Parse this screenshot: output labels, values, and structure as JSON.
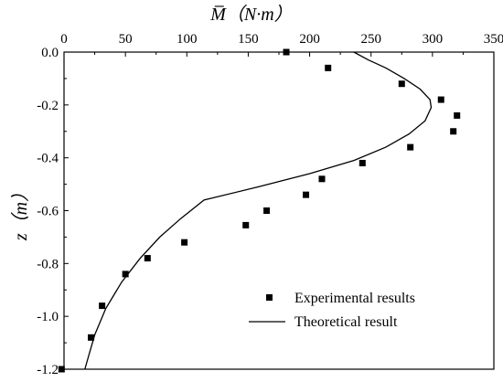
{
  "chart_data": {
    "type": "scatter",
    "title": "",
    "xlabel": "M̅（N·m）",
    "ylabel": "z（m）",
    "xlim": [
      0,
      350
    ],
    "ylim": [
      -1.2,
      0.0
    ],
    "x_ticks": [
      0,
      50,
      100,
      150,
      200,
      250,
      300,
      350
    ],
    "y_ticks": [
      0.0,
      -0.2,
      -0.4,
      -0.6,
      -0.8,
      -1.0,
      -1.2
    ],
    "y_tick_labels": [
      "0.0",
      "-0.2",
      "-0.4",
      "-0.6",
      "-0.8",
      "-1.0",
      "-1.2"
    ],
    "x_axis_position": "top",
    "grid": false,
    "legend_position": "bottom-right",
    "series": [
      {
        "name": "Experimental results",
        "type": "scatter",
        "marker": "square",
        "color": "#000000",
        "points": [
          {
            "x": 181,
            "y": 0.0
          },
          {
            "x": 215,
            "y": -0.06
          },
          {
            "x": 275,
            "y": -0.12
          },
          {
            "x": 307,
            "y": -0.18
          },
          {
            "x": 320,
            "y": -0.24
          },
          {
            "x": 317,
            "y": -0.3
          },
          {
            "x": 282,
            "y": -0.36
          },
          {
            "x": 243,
            "y": -0.42
          },
          {
            "x": 210,
            "y": -0.48
          },
          {
            "x": 197,
            "y": -0.54
          },
          {
            "x": 165,
            "y": -0.6
          },
          {
            "x": 148,
            "y": -0.655
          },
          {
            "x": 98,
            "y": -0.72
          },
          {
            "x": 68,
            "y": -0.78
          },
          {
            "x": 50,
            "y": -0.84
          },
          {
            "x": 31,
            "y": -0.96
          },
          {
            "x": 22,
            "y": -1.08
          },
          {
            "x": -2,
            "y": -1.2
          }
        ]
      },
      {
        "name": "Theoretical result",
        "type": "line",
        "color": "#000000",
        "points": [
          {
            "x": 236,
            "y": 0.0
          },
          {
            "x": 248,
            "y": -0.03
          },
          {
            "x": 262,
            "y": -0.06
          },
          {
            "x": 277,
            "y": -0.1
          },
          {
            "x": 290,
            "y": -0.14
          },
          {
            "x": 298,
            "y": -0.18
          },
          {
            "x": 299,
            "y": -0.21
          },
          {
            "x": 294,
            "y": -0.26
          },
          {
            "x": 281,
            "y": -0.31
          },
          {
            "x": 262,
            "y": -0.36
          },
          {
            "x": 236,
            "y": -0.41
          },
          {
            "x": 200,
            "y": -0.46
          },
          {
            "x": 158,
            "y": -0.51
          },
          {
            "x": 114,
            "y": -0.56
          },
          {
            "x": 95,
            "y": -0.63
          },
          {
            "x": 78,
            "y": -0.7
          },
          {
            "x": 62,
            "y": -0.78
          },
          {
            "x": 47,
            "y": -0.87
          },
          {
            "x": 34,
            "y": -0.97
          },
          {
            "x": 25,
            "y": -1.07
          },
          {
            "x": 20,
            "y": -1.15
          },
          {
            "x": 17,
            "y": -1.2
          }
        ]
      }
    ]
  }
}
